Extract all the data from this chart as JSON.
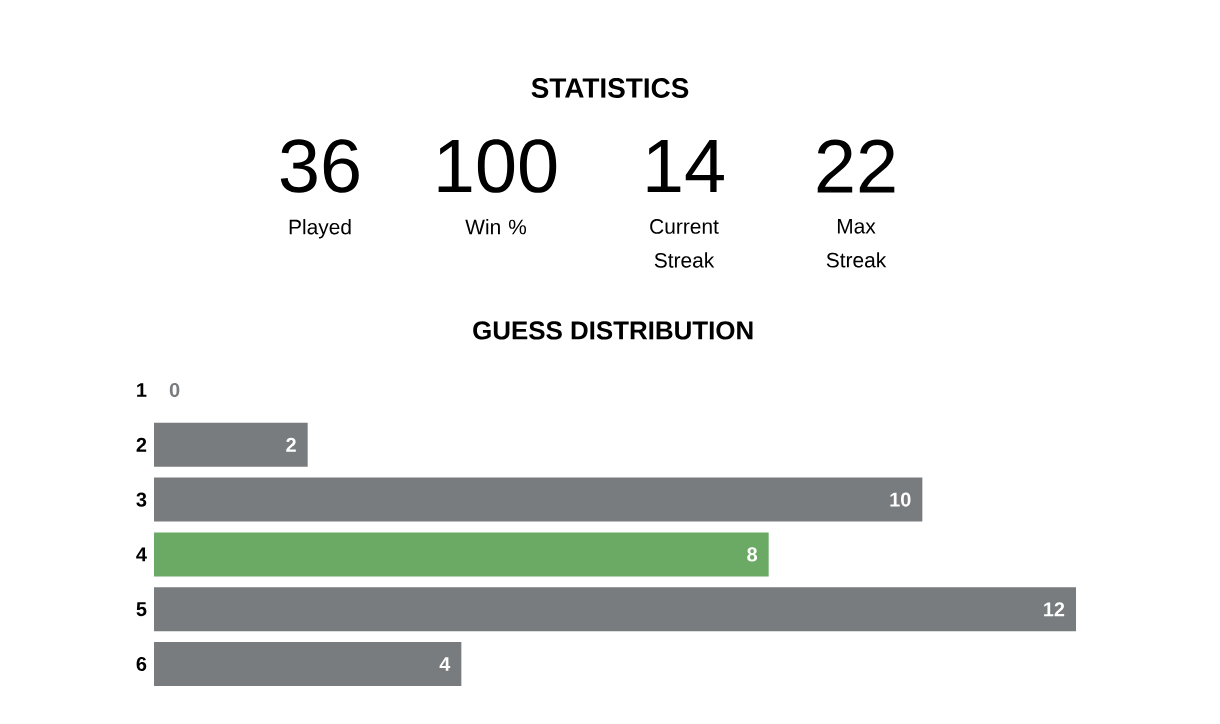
{
  "chart_data": [
    {
      "type": "other",
      "title": "STATISTICS",
      "annotations": [
        "36",
        "Played",
        "100",
        "Win %",
        "14",
        "Current Streak",
        "22",
        "Max Streak"
      ]
    },
    {
      "type": "bar",
      "orientation": "horizontal",
      "title": "GUESS DISTRIBUTION",
      "categories": [
        "1",
        "2",
        "3",
        "4",
        "5",
        "6"
      ],
      "values": [
        0,
        2,
        10,
        8,
        12,
        4
      ],
      "colors": [
        "#787c7e",
        "#787c7e",
        "#787c7e",
        "#6aaa64",
        "#787c7e",
        "#787c7e"
      ],
      "data_labels": true,
      "tick_labels": "y"
    }
  ]
}
